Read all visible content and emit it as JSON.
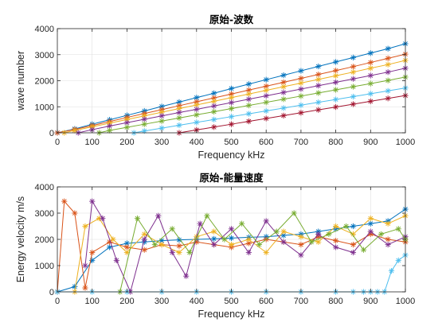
{
  "chart_data": [
    {
      "type": "line",
      "title": "原始-波数",
      "xlabel": "Frequency kHz",
      "ylabel": "wave number",
      "xlim": [
        0,
        1000
      ],
      "ylim": [
        0,
        4000
      ],
      "xticks": [
        0,
        100,
        200,
        300,
        400,
        500,
        600,
        700,
        800,
        900,
        1000
      ],
      "yticks": [
        0,
        1000,
        2000,
        3000,
        4000
      ],
      "grid": true,
      "marker": "asterisk",
      "series": [
        {
          "color": "#0072BD",
          "x": [
            0,
            50,
            100,
            150,
            200,
            250,
            300,
            350,
            400,
            450,
            500,
            550,
            600,
            650,
            700,
            750,
            800,
            850,
            900,
            950,
            1000
          ],
          "y": [
            0,
            150,
            330,
            500,
            670,
            840,
            1010,
            1180,
            1350,
            1520,
            1700,
            1870,
            2040,
            2210,
            2380,
            2550,
            2720,
            2890,
            3060,
            3230,
            3420
          ]
        },
        {
          "color": "#D95319",
          "x": [
            0,
            50,
            100,
            150,
            200,
            250,
            300,
            350,
            400,
            450,
            500,
            550,
            600,
            650,
            700,
            750,
            800,
            850,
            900,
            950,
            1000
          ],
          "y": [
            0,
            130,
            280,
            430,
            590,
            740,
            890,
            1040,
            1190,
            1340,
            1490,
            1640,
            1790,
            1940,
            2090,
            2240,
            2390,
            2540,
            2700,
            2860,
            3020
          ]
        },
        {
          "color": "#EDB120",
          "x": [
            20,
            50,
            100,
            150,
            200,
            250,
            300,
            350,
            400,
            450,
            500,
            550,
            600,
            650,
            700,
            750,
            800,
            850,
            900,
            950,
            1000
          ],
          "y": [
            0,
            90,
            230,
            370,
            510,
            650,
            790,
            930,
            1070,
            1210,
            1350,
            1490,
            1630,
            1770,
            1910,
            2050,
            2190,
            2330,
            2480,
            2620,
            2780
          ]
        },
        {
          "color": "#7E2F8E",
          "x": [
            60,
            100,
            150,
            200,
            250,
            300,
            350,
            400,
            450,
            500,
            550,
            600,
            650,
            700,
            750,
            800,
            850,
            900,
            950,
            1000
          ],
          "y": [
            0,
            120,
            260,
            390,
            520,
            650,
            780,
            900,
            1030,
            1160,
            1290,
            1420,
            1550,
            1680,
            1810,
            1940,
            2070,
            2200,
            2330,
            2480
          ]
        },
        {
          "color": "#77AC30",
          "x": [
            120,
            150,
            200,
            250,
            300,
            350,
            400,
            450,
            500,
            550,
            600,
            650,
            700,
            750,
            800,
            850,
            900,
            950,
            1000
          ],
          "y": [
            0,
            90,
            210,
            330,
            450,
            570,
            690,
            810,
            930,
            1050,
            1170,
            1290,
            1410,
            1530,
            1650,
            1770,
            1890,
            2010,
            2140
          ]
        },
        {
          "color": "#4DBEEE",
          "x": [
            220,
            250,
            300,
            350,
            400,
            450,
            500,
            550,
            600,
            650,
            700,
            750,
            800,
            850,
            900,
            950,
            1000
          ],
          "y": [
            0,
            70,
            180,
            290,
            400,
            510,
            620,
            730,
            840,
            950,
            1060,
            1170,
            1280,
            1390,
            1500,
            1610,
            1720
          ]
        },
        {
          "color": "#A2142F",
          "x": [
            350,
            400,
            450,
            500,
            550,
            600,
            650,
            700,
            750,
            800,
            850,
            900,
            950,
            1000
          ],
          "y": [
            0,
            110,
            220,
            330,
            440,
            550,
            660,
            770,
            880,
            990,
            1100,
            1210,
            1320,
            1430
          ]
        }
      ]
    },
    {
      "type": "line",
      "title": "原始-能量速度",
      "xlabel": "Frequency kHz",
      "ylabel": "Energy velocity m/s",
      "xlim": [
        0,
        1000
      ],
      "ylim": [
        0,
        4000
      ],
      "xticks": [
        0,
        100,
        200,
        300,
        400,
        500,
        600,
        700,
        800,
        900,
        1000
      ],
      "yticks": [
        0,
        1000,
        2000,
        3000,
        4000
      ],
      "grid": true,
      "marker": "asterisk",
      "series": [
        {
          "color": "#0072BD",
          "x": [
            0,
            50,
            100,
            150,
            200,
            250,
            300,
            350,
            400,
            450,
            500,
            550,
            600,
            650,
            700,
            750,
            800,
            850,
            900,
            950,
            1000
          ],
          "y": [
            0,
            200,
            1200,
            1700,
            1850,
            1900,
            1950,
            1980,
            2000,
            2020,
            2050,
            2080,
            2100,
            2150,
            2200,
            2300,
            2400,
            2500,
            2600,
            2700,
            3150
          ]
        },
        {
          "color": "#D95319",
          "x": [
            0,
            20,
            50,
            80,
            100,
            150,
            200,
            250,
            300,
            350,
            400,
            450,
            500,
            550,
            600,
            650,
            700,
            750,
            800,
            850,
            900,
            950,
            1000
          ],
          "y": [
            0,
            3450,
            3000,
            150,
            1500,
            1900,
            1700,
            1600,
            1800,
            1750,
            1900,
            1800,
            1700,
            1850,
            2000,
            1900,
            1800,
            2100,
            1950,
            1800,
            2200,
            2000,
            1900
          ]
        },
        {
          "color": "#EDB120",
          "x": [
            50,
            80,
            120,
            160,
            200,
            250,
            300,
            350,
            400,
            450,
            500,
            550,
            600,
            650,
            700,
            750,
            800,
            850,
            900,
            950,
            1000
          ],
          "y": [
            0,
            2500,
            2800,
            2000,
            1500,
            2200,
            1800,
            1500,
            2100,
            2300,
            1800,
            2000,
            1500,
            2300,
            2100,
            1900,
            2500,
            2200,
            2800,
            2600,
            2900
          ]
        },
        {
          "color": "#7E2F8E",
          "x": [
            80,
            100,
            130,
            170,
            210,
            250,
            290,
            330,
            370,
            410,
            450,
            500,
            550,
            600,
            650,
            700,
            750,
            800,
            850,
            900,
            950,
            1000
          ],
          "y": [
            1000,
            3450,
            2800,
            1200,
            0,
            2000,
            2900,
            1500,
            600,
            2600,
            1800,
            2400,
            1500,
            2700,
            1900,
            1400,
            2200,
            1700,
            1500,
            2300,
            1800,
            2100
          ]
        },
        {
          "color": "#77AC30",
          "x": [
            180,
            230,
            280,
            330,
            380,
            430,
            480,
            530,
            580,
            630,
            680,
            730,
            780,
            830,
            880,
            930,
            980,
            1000
          ],
          "y": [
            0,
            2800,
            1800,
            2400,
            1500,
            2900,
            2000,
            2600,
            1800,
            2300,
            3000,
            1900,
            2200,
            2500,
            1600,
            2200,
            2400,
            2000
          ]
        },
        {
          "color": "#4DBEEE",
          "x": [
            0,
            100,
            200,
            300,
            400,
            500,
            600,
            700,
            800,
            850,
            880,
            900,
            920,
            940,
            960,
            980,
            1000
          ],
          "y": [
            0,
            0,
            0,
            0,
            0,
            0,
            0,
            0,
            0,
            0,
            0,
            0,
            0,
            0,
            800,
            1200,
            1400
          ]
        }
      ]
    }
  ]
}
